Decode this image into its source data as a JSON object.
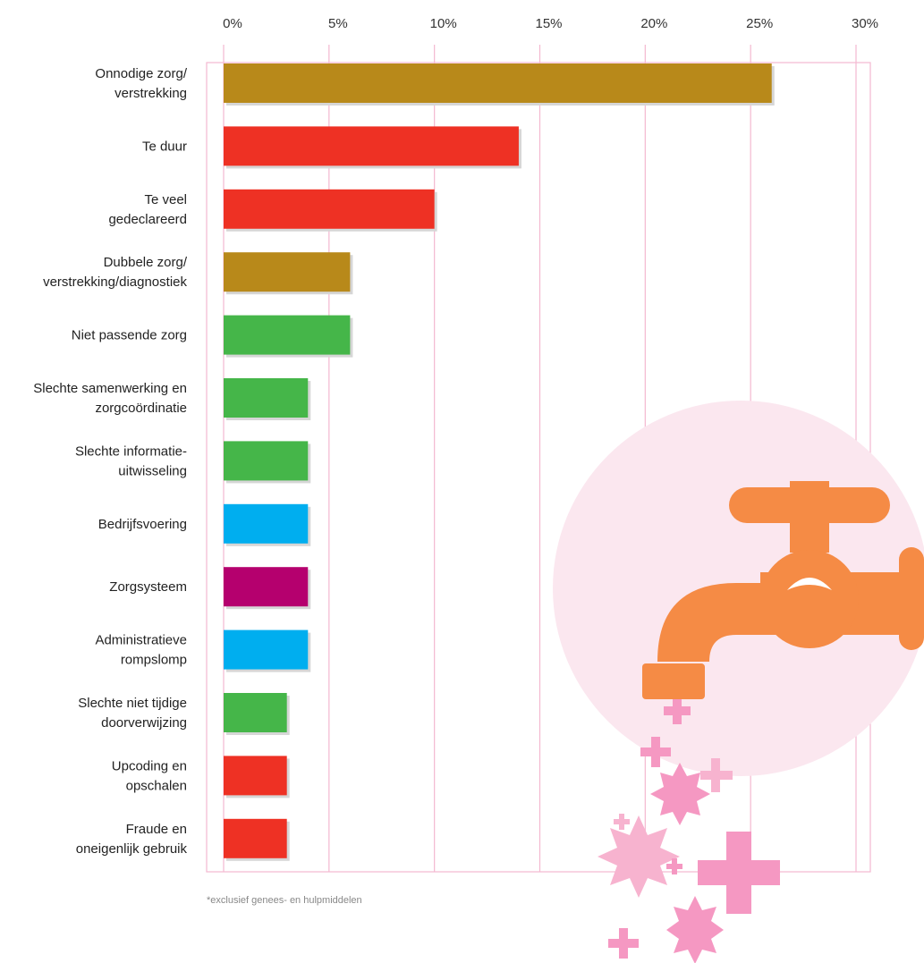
{
  "chart_data": {
    "type": "bar",
    "orientation": "horizontal",
    "categories": [
      "Onnodige zorg/\nverstrekking",
      "Te duur",
      "Te veel\ngedeclareerd",
      "Dubbele zorg/\nverstrekking/diagnostiek",
      "Niet passende zorg",
      "Slechte samenwerking en\nzorgcoördinatie",
      "Slechte informatie-\nuitwisseling",
      "Bedrijfsvoering",
      "Zorgsysteem",
      "Administratieve\nrompslomp",
      "Slechte niet tijdige\ndoorverwijzing",
      "Upcoding en\nopschalen",
      "Fraude en\noneigenlijk gebruik"
    ],
    "values": [
      26,
      14,
      10,
      6,
      6,
      4,
      4,
      4,
      4,
      4,
      3,
      3,
      3
    ],
    "colors": [
      "#b8891a",
      "#ee3124",
      "#ee3124",
      "#b8891a",
      "#45b649",
      "#45b649",
      "#45b649",
      "#00aeef",
      "#b5006e",
      "#00aeef",
      "#45b649",
      "#ee3124",
      "#ee3124"
    ],
    "xlim": [
      0,
      30
    ],
    "xticks": [
      {
        "value": 0,
        "label": "0%"
      },
      {
        "value": 5,
        "label": "5%"
      },
      {
        "value": 10,
        "label": "10%"
      },
      {
        "value": 15,
        "label": "15%"
      },
      {
        "value": 20,
        "label": "20%"
      },
      {
        "value": 25,
        "label": "25%"
      },
      {
        "value": 30,
        "label": "30%"
      }
    ],
    "grid": true,
    "footnote": "*exclusief genees- en hulpmiddelen"
  }
}
